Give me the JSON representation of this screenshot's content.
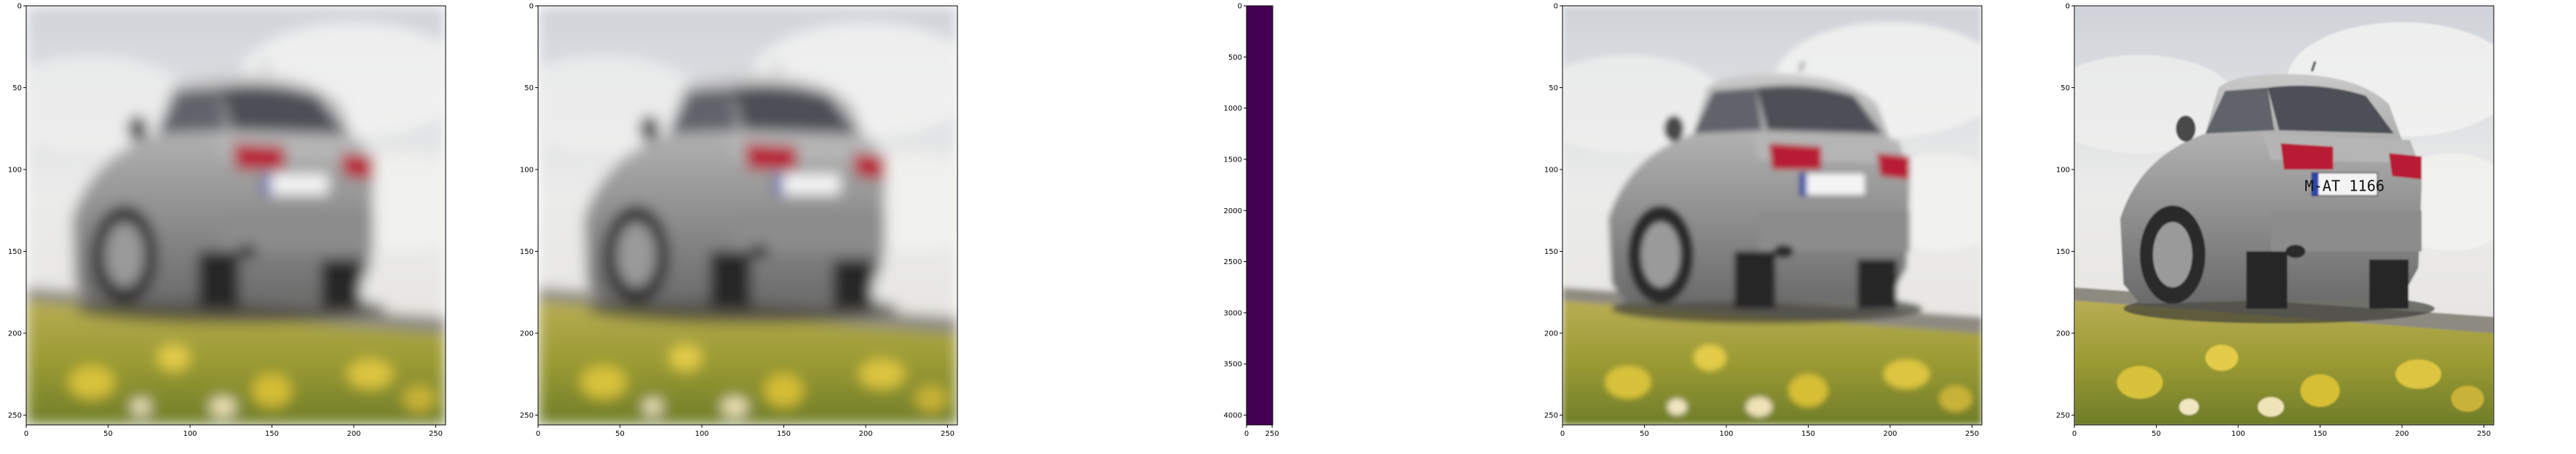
{
  "chart_data": [
    {
      "type": "image",
      "title": "",
      "xlabel": "",
      "ylabel": "",
      "xlim": [
        0,
        256
      ],
      "ylim": [
        256,
        0
      ],
      "xticks": [
        "0",
        "50",
        "100",
        "150",
        "200",
        "250"
      ],
      "yticks": [
        "0",
        "50",
        "100",
        "150",
        "200",
        "250"
      ],
      "image": "blurred photo of silver sedan (rear three-quarter view) on a road with yellow flowers in foreground, cloudy sky"
    },
    {
      "type": "image",
      "title": "",
      "xlabel": "",
      "ylabel": "",
      "xlim": [
        0,
        256
      ],
      "ylim": [
        256,
        0
      ],
      "xticks": [
        "0",
        "50",
        "100",
        "150",
        "200",
        "250"
      ],
      "yticks": [
        "0",
        "50",
        "100",
        "150",
        "200",
        "250"
      ],
      "image": "blurred photo of silver sedan (same scene)"
    },
    {
      "type": "heatmap",
      "title": "",
      "xlabel": "",
      "ylabel": "",
      "xlim": [
        0,
        256
      ],
      "ylim": [
        4096,
        0
      ],
      "xticks": [
        "0",
        "250"
      ],
      "yticks": [
        "0",
        "500",
        "1000",
        "1500",
        "2000",
        "2500",
        "3000",
        "3500",
        "4000"
      ],
      "colormap": "viridis",
      "fill_color": "#440154",
      "values": "uniform minimum value"
    },
    {
      "type": "image",
      "title": "",
      "xlabel": "",
      "ylabel": "",
      "xlim": [
        0,
        256
      ],
      "ylim": [
        256,
        0
      ],
      "xticks": [
        "0",
        "50",
        "100",
        "150",
        "200",
        "250"
      ],
      "yticks": [
        "0",
        "50",
        "100",
        "150",
        "200",
        "250"
      ],
      "image": "slightly sharper photo of silver sedan (same scene)"
    },
    {
      "type": "image",
      "title": "",
      "xlabel": "",
      "ylabel": "",
      "xlim": [
        0,
        256
      ],
      "ylim": [
        256,
        0
      ],
      "xticks": [
        "0",
        "50",
        "100",
        "150",
        "200",
        "250"
      ],
      "yticks": [
        "0",
        "50",
        "100",
        "150",
        "200",
        "250"
      ],
      "image": "sharp photo of silver sedan (same scene)",
      "plate_text": "M-AT 1166"
    }
  ]
}
